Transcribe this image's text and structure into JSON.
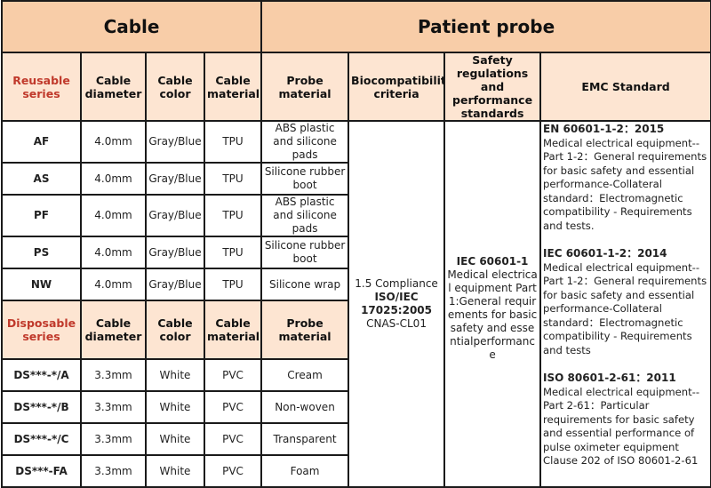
{
  "header": {
    "cable": "Cable",
    "patient_probe": "Patient probe"
  },
  "reusable_header": [
    "Reusable series",
    "Cable diameter",
    "Cable color",
    "Cable material",
    "Probe material",
    "Biocompatibility criteria",
    "Safety regulations and performance standards",
    "EMC Standard"
  ],
  "reusable_rows": [
    {
      "series": "AF",
      "diameter": "4.0mm",
      "color": "Gray/Blue",
      "material": "TPU",
      "probe": "ABS plastic and silicone pads"
    },
    {
      "series": "AS",
      "diameter": "4.0mm",
      "color": "Gray/Blue",
      "material": "TPU",
      "probe": "Silicone rubber boot"
    },
    {
      "series": "PF",
      "diameter": "4.0mm",
      "color": "Gray/Blue",
      "material": "TPU",
      "probe": "ABS plastic and silicone pads"
    },
    {
      "series": "PS",
      "diameter": "4.0mm",
      "color": "Gray/Blue",
      "material": "TPU",
      "probe": "Silicone rubber boot"
    },
    {
      "series": "NW",
      "diameter": "4.0mm",
      "color": "Gray/Blue",
      "material": "TPU",
      "probe": "Silicone wrap"
    }
  ],
  "disposable_header": [
    "Disposable series",
    "Cable diameter",
    "Cable color",
    "Cable material",
    "Probe material"
  ],
  "disposable_rows": [
    {
      "series": "DS***-*/A",
      "diameter": "3.3mm",
      "color": "White",
      "material": "PVC",
      "probe": "Cream"
    },
    {
      "series": "DS***-*/B",
      "diameter": "3.3mm",
      "color": "White",
      "material": "PVC",
      "probe": "Non-woven"
    },
    {
      "series": "DS***-*/C",
      "diameter": "3.3mm",
      "color": "White",
      "material": "PVC",
      "probe": "Transparent"
    },
    {
      "series": "DS***-FA",
      "diameter": "3.3mm",
      "color": "White",
      "material": "PVC",
      "probe": "Foam"
    }
  ],
  "biocompatibility": {
    "line1": "1.5 Compliance",
    "line2": "ISO/IEC 17025:2005",
    "line3": "CNAS-CL01"
  },
  "safety": {
    "title": "IEC 60601-1",
    "text": "Medical electrical equipment Part 1:General requirements for basic safety and essentialperformance"
  },
  "emc": [
    {
      "title": "EN 60601-1-2：2015",
      "text": "Medical electrical equipment-- Part 1-2：General requirements for basic safety and essential performance-Collateral standard：Electromagnetic compatibility - Requirements and tests."
    },
    {
      "title": "IEC 60601-1-2：2014",
      "text": "Medical electrical equipment-- Part 1-2：General requirements for basic safety and essential performance-Collateral standard：Electromagnetic compatibility - Requirements and tests"
    },
    {
      "title": "ISO 80601-2-61：2011",
      "text": "Medical electrical equipment-- Part 2-61：Particular requirements for basic safety and essential performance of pulse oximeter equipment",
      "clause": "Clause 202 of ISO 80601-2-61"
    }
  ],
  "colors": {
    "header_top": "#f8cda8",
    "header_sub": "#fde5d2",
    "series_label": "#c0392b"
  }
}
